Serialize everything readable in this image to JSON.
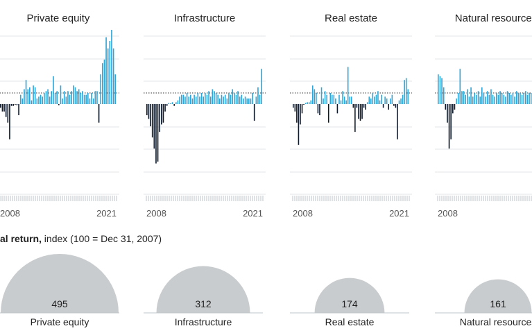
{
  "colors": {
    "positive": "#2ea6d9",
    "negative": "#0e1a2b",
    "dome": "#c9ccce",
    "grid": "#e3e6e8",
    "axis": "#bfc4c8"
  },
  "subtitle": {
    "bold": "al return,",
    "rest": " index (100 = Dec 31, 2007)"
  },
  "chart_data": [
    {
      "type": "bar",
      "title": "Private equity",
      "x_start_label": "2008",
      "x_end_label": "2021",
      "values": [
        -1.0,
        -2.0,
        -2.0,
        -3.5,
        -5.0,
        -9.5,
        -0.5,
        -0.5,
        -0.2,
        -0.3,
        -3.0,
        2.5,
        1.5,
        4.0,
        6.5,
        4.0,
        4.5,
        1.0,
        5.0,
        4.5,
        1.5,
        2.0,
        2.5,
        2.0,
        3.0,
        3.5,
        4.0,
        2.0,
        3.5,
        7.5,
        3.0,
        3.5,
        -0.3,
        5.0,
        1.5,
        3.5,
        2.0,
        3.5,
        2.5,
        3.5,
        5.0,
        4.5,
        3.5,
        4.0,
        3.0,
        3.5,
        2.5,
        2.5,
        3.0,
        1.5,
        3.0,
        1.5,
        3.5,
        3.5,
        -5.0,
        8.0,
        11.0,
        12.0,
        18.0,
        15.0,
        17.0,
        20.0,
        15.0,
        8.0
      ],
      "ylim": [
        -16,
        32
      ]
    },
    {
      "type": "bar",
      "title": "Infrastructure",
      "x_start_label": "2008",
      "x_end_label": "2021",
      "values": [
        -3.0,
        -4.0,
        -6.0,
        -9.0,
        -12.0,
        -16.0,
        -15.5,
        -7.5,
        -5.5,
        -5.0,
        -2.0,
        -0.5,
        0.3,
        0.2,
        0.5,
        -0.5,
        0.5,
        1.0,
        2.0,
        2.5,
        2.5,
        2.0,
        3.0,
        2.0,
        2.5,
        1.5,
        2.5,
        2.0,
        3.0,
        2.0,
        3.0,
        2.0,
        3.0,
        2.5,
        3.5,
        2.0,
        4.0,
        3.5,
        3.0,
        2.5,
        1.5,
        2.5,
        2.0,
        2.5,
        1.5,
        3.0,
        2.5,
        4.0,
        3.0,
        2.5,
        3.5,
        2.0,
        2.5,
        1.5,
        2.0,
        1.5,
        1.5,
        1.5,
        3.0,
        -4.5,
        2.0,
        4.5,
        2.5,
        9.5
      ],
      "ylim": [
        -16,
        32
      ]
    },
    {
      "type": "bar",
      "title": "Real estate",
      "x_start_label": "2008",
      "x_end_label": "2021",
      "values": [
        -1.0,
        -2.0,
        -5.0,
        -11.0,
        -5.5,
        -2.5,
        -0.2,
        0.3,
        0.5,
        0.5,
        1.0,
        5.0,
        4.0,
        3.0,
        -2.5,
        -3.0,
        4.5,
        1.5,
        3.5,
        2.5,
        -5.0,
        3.0,
        2.5,
        2.5,
        1.5,
        -2.5,
        2.5,
        1.0,
        3.5,
        2.0,
        1.0,
        10.0,
        2.0,
        2.0,
        -1.0,
        -7.5,
        -1.0,
        -4.0,
        -4.5,
        -4.0,
        -1.0,
        -1.5,
        0.5,
        2.0,
        1.5,
        3.0,
        2.0,
        2.5,
        3.5,
        1.0,
        2.5,
        -1.0,
        2.0,
        1.5,
        -1.5,
        1.5,
        2.5,
        -0.5,
        -1.0,
        -9.5,
        1.0,
        1.5,
        2.5,
        6.5,
        7.0,
        4.0
      ],
      "ylim": [
        -16,
        32
      ]
    },
    {
      "type": "bar",
      "title": "Natural resources",
      "x_start_label": "2008",
      "x_end_label": "",
      "values": [
        8.0,
        7.5,
        7.0,
        4.5,
        -1.5,
        -5.0,
        -12.0,
        -9.5,
        -2.5,
        -1.5,
        1.5,
        3.0,
        9.5,
        3.5,
        3.5,
        2.5,
        4.0,
        2.0,
        4.5,
        2.0,
        3.0,
        2.5,
        3.5,
        2.0,
        4.5,
        3.0,
        2.0,
        3.5,
        2.5,
        4.0,
        2.5,
        2.0,
        3.0,
        2.5,
        3.5,
        3.0,
        2.5,
        2.0,
        3.5,
        3.0,
        2.5,
        3.0,
        2.0,
        3.5,
        3.0,
        3.0,
        2.5,
        3.0,
        3.5,
        2.5,
        3.0,
        3.0,
        3.5,
        3.0,
        3.5,
        2.5,
        3.0,
        3.0,
        3.0,
        3.5,
        3.5,
        3.0,
        3.0,
        3.5
      ],
      "ylim": [
        -16,
        32
      ]
    },
    {
      "type": "area",
      "x_label_parts": [
        "al return,",
        " index (100 = Dec 31, 2007)"
      ],
      "categories": [
        "Private equity",
        "Infrastructure",
        "Real estate",
        "Natural resources"
      ],
      "values": [
        495,
        312,
        174,
        161
      ]
    }
  ]
}
